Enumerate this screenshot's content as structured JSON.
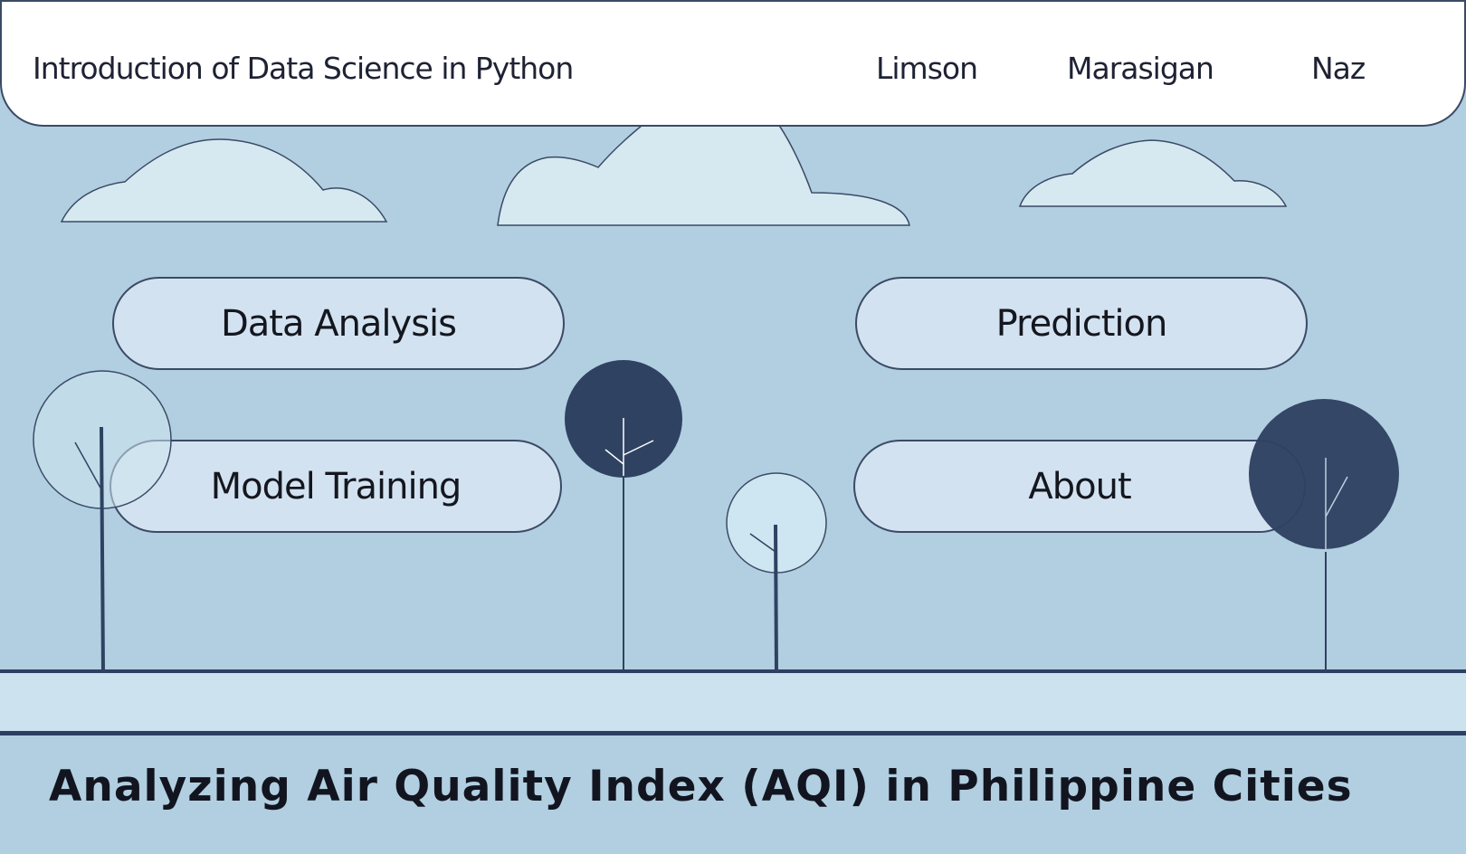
{
  "header": {
    "title": "Introduction of Data Science in Python",
    "authors": [
      "Limson",
      "Marasigan",
      "Naz"
    ]
  },
  "nav": {
    "data_analysis": "Data Analysis",
    "prediction": "Prediction",
    "model_training": "Model Training",
    "about": "About"
  },
  "footer": {
    "title": "Analyzing Air Quality Index (AQI) in Philippine Cities"
  },
  "colors": {
    "sky": "#b1cfe0",
    "cloud": "#d6e9f1",
    "outline": "#3b4a66",
    "tree_dark": "#2f4262",
    "tree_light": "#cde6f1",
    "ground": "#cde2ef",
    "button": "#d6e4f1"
  },
  "icons": [
    "cloud-icon",
    "tree-icon"
  ]
}
